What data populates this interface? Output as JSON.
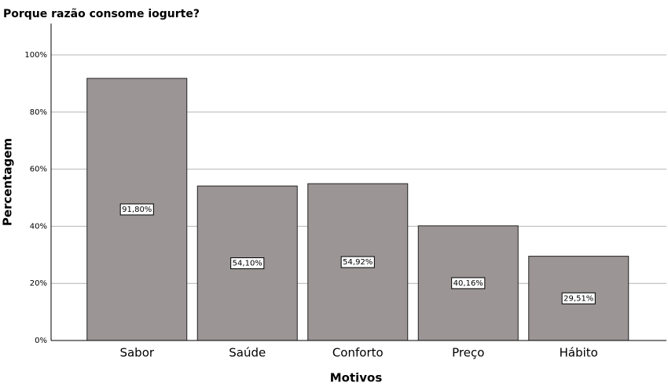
{
  "chart_data": {
    "type": "bar",
    "title": "Porque razão consome iogurte?",
    "x_label": "Motivos",
    "y_label": "Percentagem",
    "categories": [
      "Sabor",
      "Saúde",
      "Conforto",
      "Preço",
      "Hábito"
    ],
    "values": [
      91.8,
      54.1,
      54.92,
      40.16,
      29.51
    ],
    "value_labels": [
      "91,80%",
      "54,10%",
      "54,92%",
      "40,16%",
      "29,51%"
    ],
    "color": "#9c9595",
    "ylim": [
      0,
      111
    ],
    "yticks": [
      {
        "value": 0,
        "label": "0%"
      },
      {
        "value": 20,
        "label": "20%"
      },
      {
        "value": 40,
        "label": "40%"
      },
      {
        "value": 60,
        "label": "60%"
      },
      {
        "value": 80,
        "label": "80%"
      },
      {
        "value": 100,
        "label": "100%"
      }
    ],
    "grid": true
  }
}
